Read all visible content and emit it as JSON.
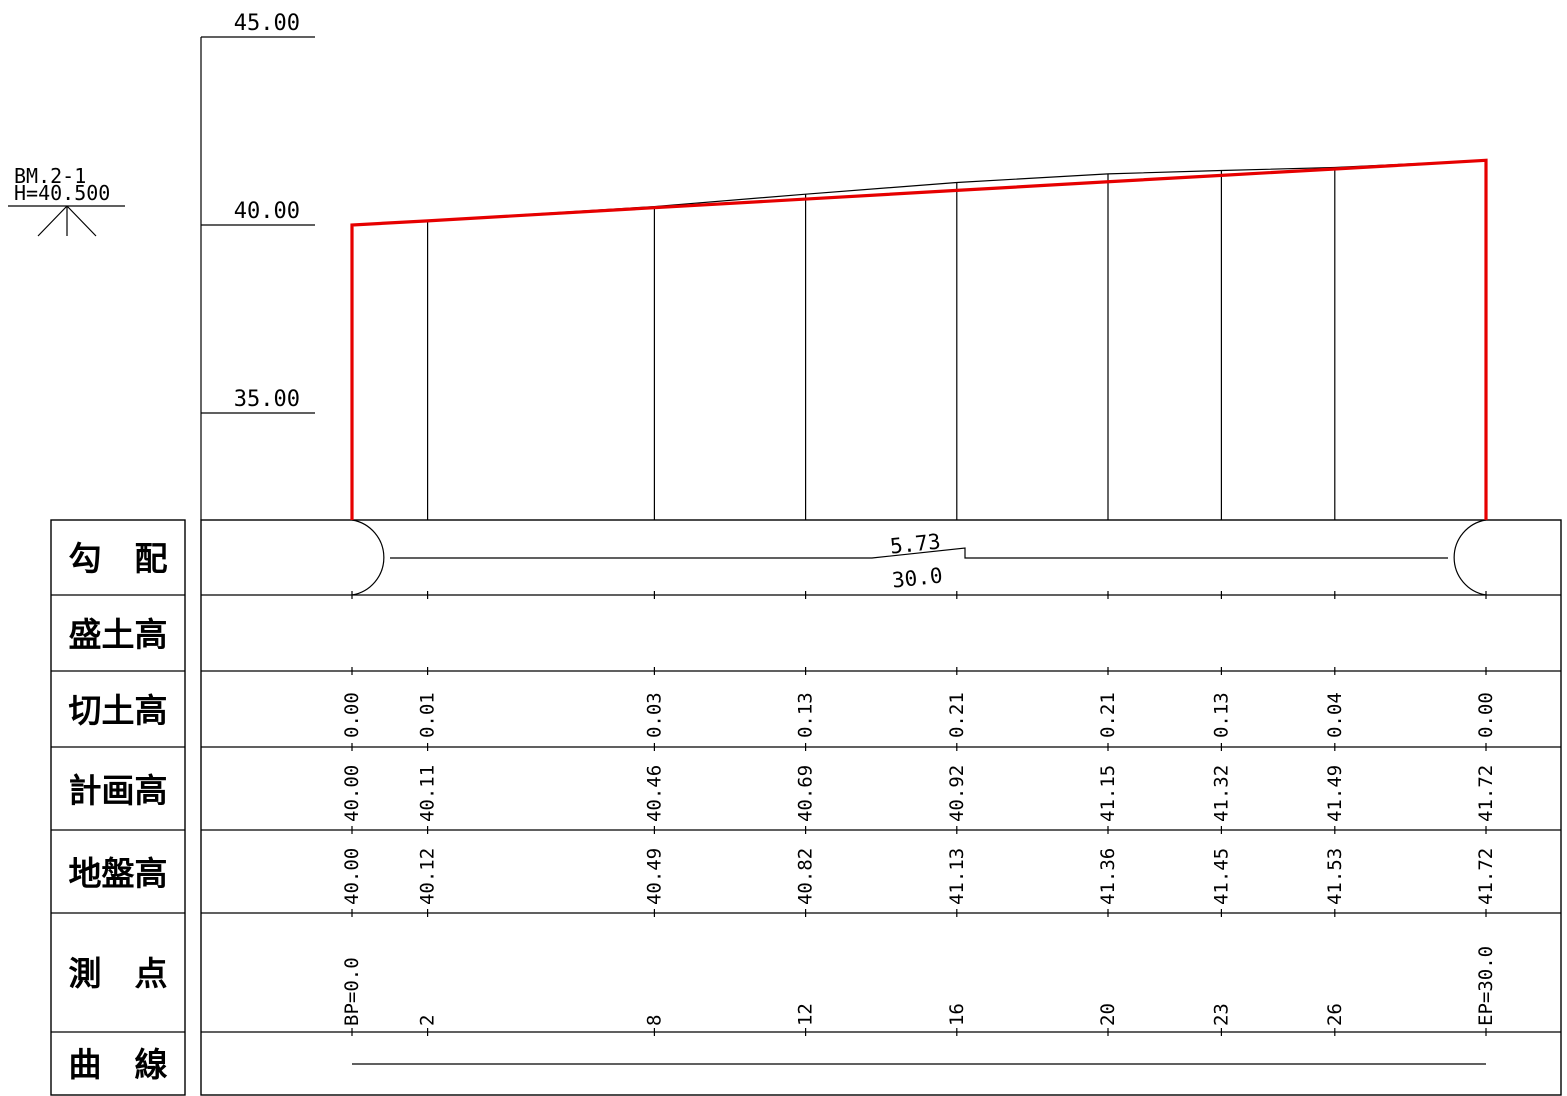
{
  "benchmark": {
    "name": "BM.2-1",
    "height": "H=40.500"
  },
  "elevation_scale": {
    "labels": [
      "45.00",
      "40.00",
      "35.00"
    ]
  },
  "row_headers": {
    "gradient": "勾　配",
    "fill_height": "盛土高",
    "cut_height": "切土高",
    "plan_height": "計画高",
    "ground_height": "地盤高",
    "station": "測　点",
    "curve": "曲　線"
  },
  "gradient": {
    "value": "5.73",
    "length": "30.0"
  },
  "stations": [
    {
      "label": "BP=0.0",
      "cut": "0.00",
      "plan": "40.00",
      "ground": "40.00"
    },
    {
      "label": "2",
      "cut": "0.01",
      "plan": "40.11",
      "ground": "40.12"
    },
    {
      "label": "8",
      "cut": "0.03",
      "plan": "40.46",
      "ground": "40.49"
    },
    {
      "label": "12",
      "cut": "0.13",
      "plan": "40.69",
      "ground": "40.82"
    },
    {
      "label": "16",
      "cut": "0.21",
      "plan": "40.92",
      "ground": "41.13"
    },
    {
      "label": "20",
      "cut": "0.21",
      "plan": "41.15",
      "ground": "41.36"
    },
    {
      "label": "23",
      "cut": "0.13",
      "plan": "41.32",
      "ground": "41.45"
    },
    {
      "label": "26",
      "cut": "0.04",
      "plan": "41.49",
      "ground": "41.53"
    },
    {
      "label": "EP=30.0",
      "cut": "0.00",
      "plan": "41.72",
      "ground": "41.72"
    }
  ],
  "chart_data": {
    "type": "line",
    "x": [
      0,
      2,
      8,
      12,
      16,
      20,
      23,
      26,
      30
    ],
    "series": [
      {
        "values": [
          40.0,
          40.11,
          40.46,
          40.69,
          40.92,
          41.15,
          41.32,
          41.49,
          41.72
        ],
        "color": "#e60000"
      },
      {
        "values": [
          40.0,
          40.12,
          40.49,
          40.82,
          41.13,
          41.36,
          41.45,
          41.53,
          41.72
        ],
        "color": "#000000"
      }
    ],
    "ylim": [
      30,
      45
    ],
    "yticks": [
      35,
      40,
      45
    ]
  }
}
